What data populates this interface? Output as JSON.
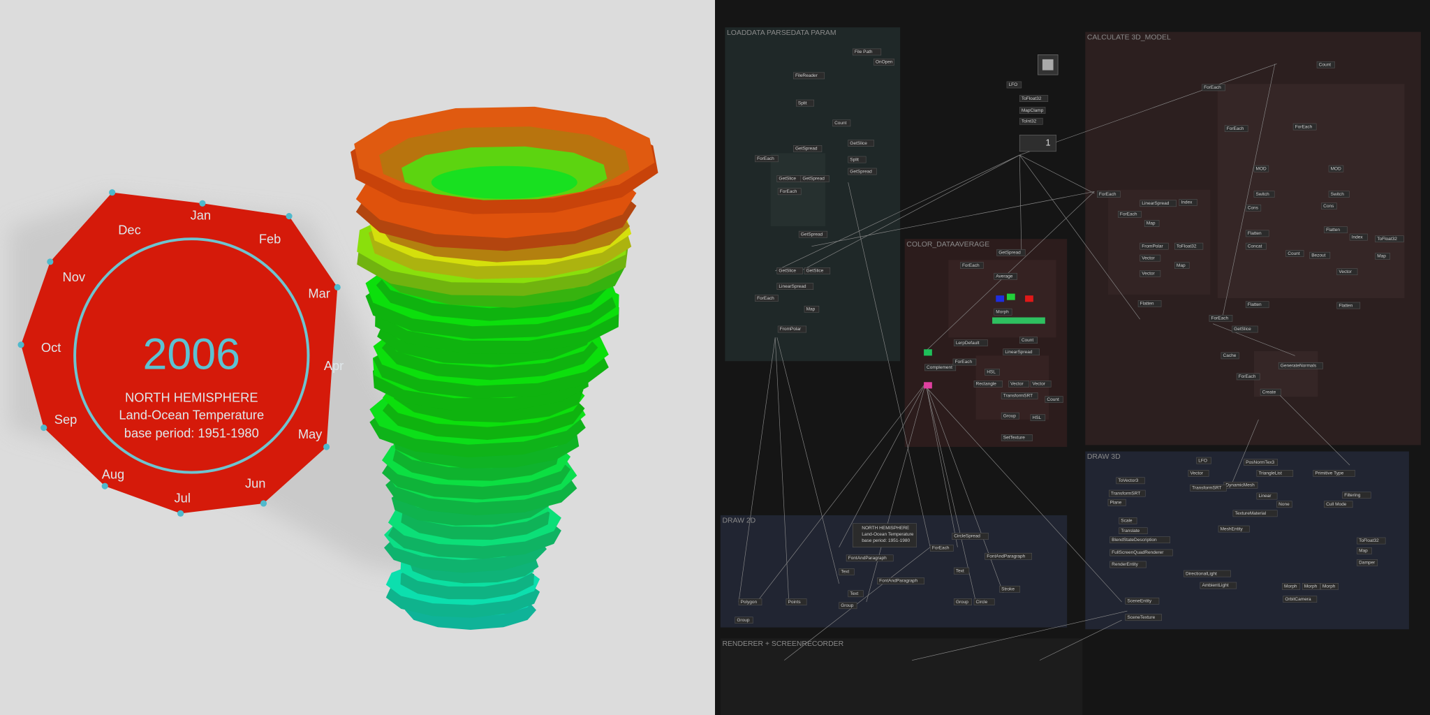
{
  "viewport": {
    "year": "2006",
    "lines": [
      "NORTH HEMISPHERE",
      "Land-Ocean Temperature",
      "base period: 1951-1980"
    ],
    "months": [
      "Jan",
      "Feb",
      "Mar",
      "Apr",
      "May",
      "Jun",
      "Jul",
      "Aug",
      "Sep",
      "Oct",
      "Nov",
      "Dec"
    ]
  },
  "patch": {
    "groups": [
      {
        "title": "LOADDATA PARSEDATA PARAM"
      },
      {
        "title": "CALCULATE 3D_MODEL"
      },
      {
        "title": "COLOR_DATAAVERAGE"
      },
      {
        "title": "DRAW 3D"
      },
      {
        "title": "DRAW 2D"
      },
      {
        "title": "RENDERER + SCREENRECORDER"
      }
    ],
    "display": "1",
    "text_node": [
      "NORTH HEMISPHERE",
      "Land-Ocean Temperature",
      "base period: 1951-1980"
    ],
    "nodes": [
      {
        "label": "FileReader"
      },
      {
        "label": "Split"
      },
      {
        "label": "Count"
      },
      {
        "label": "GetSpread"
      },
      {
        "label": "GetSlice"
      },
      {
        "label": "Split"
      },
      {
        "label": "GetSpread"
      },
      {
        "label": "ForEach"
      },
      {
        "label": "GetSlice"
      },
      {
        "label": "GetSpread"
      },
      {
        "label": "ForEach"
      },
      {
        "label": "GetSpread"
      },
      {
        "label": "GetSlice"
      },
      {
        "label": "GetSlice"
      },
      {
        "label": "LinearSpread"
      },
      {
        "label": "ForEach"
      },
      {
        "label": "Map"
      },
      {
        "label": "FromPolar"
      },
      {
        "label": "File Path"
      },
      {
        "label": "OnOpen"
      },
      {
        "label": "LFO"
      },
      {
        "label": "ToFloat32"
      },
      {
        "label": "MapClamp"
      },
      {
        "label": "ToInt32"
      },
      {
        "label": "GetSpread"
      },
      {
        "label": "ForEach"
      },
      {
        "label": "Average"
      },
      {
        "label": "Morph"
      },
      {
        "label": "LerpDefault"
      },
      {
        "label": "Count"
      },
      {
        "label": "LinearSpread"
      },
      {
        "label": "Complement"
      },
      {
        "label": "ForEach"
      },
      {
        "label": "HSL"
      },
      {
        "label": "Rectangle"
      },
      {
        "label": "Vector"
      },
      {
        "label": "Vector"
      },
      {
        "label": "TransformSRT"
      },
      {
        "label": "Count"
      },
      {
        "label": "Group"
      },
      {
        "label": "HSL"
      },
      {
        "label": "SetTexture"
      },
      {
        "label": "Count"
      },
      {
        "label": "ForEach"
      },
      {
        "label": "ForEach"
      },
      {
        "label": "ForEach"
      },
      {
        "label": "MOD"
      },
      {
        "label": "MOD"
      },
      {
        "label": "Switch"
      },
      {
        "label": "Switch"
      },
      {
        "label": "Cons"
      },
      {
        "label": "Cons"
      },
      {
        "label": "ForEach"
      },
      {
        "label": "LinearSpread"
      },
      {
        "label": "Index"
      },
      {
        "label": "ForEach"
      },
      {
        "label": "Map"
      },
      {
        "label": "FromPolar"
      },
      {
        "label": "ToFloat32"
      },
      {
        "label": "Vector"
      },
      {
        "label": "Map"
      },
      {
        "label": "Vector"
      },
      {
        "label": "Flatten"
      },
      {
        "label": "Flatten"
      },
      {
        "label": "Index"
      },
      {
        "label": "ToFloat32"
      },
      {
        "label": "Concat"
      },
      {
        "label": "Count"
      },
      {
        "label": "Bezout"
      },
      {
        "label": "Map"
      },
      {
        "label": "Vector"
      },
      {
        "label": "Flatten"
      },
      {
        "label": "Flatten"
      },
      {
        "label": "Flatten"
      },
      {
        "label": "ForEach"
      },
      {
        "label": "GetSlice"
      },
      {
        "label": "Cache"
      },
      {
        "label": "ForEach"
      },
      {
        "label": "GenerateNormals"
      },
      {
        "label": "Create"
      },
      {
        "label": "PosNormTex3"
      },
      {
        "label": "TriangleList"
      },
      {
        "label": "Primitive Type"
      },
      {
        "label": "LFO"
      },
      {
        "label": "Vector"
      },
      {
        "label": "DynamicMesh"
      },
      {
        "label": "ToVector3"
      },
      {
        "label": "TransformSRT"
      },
      {
        "label": "TransformSRT"
      },
      {
        "label": "Plane"
      },
      {
        "label": "Linear"
      },
      {
        "label": "Filtering"
      },
      {
        "label": "None"
      },
      {
        "label": "Cull Mode"
      },
      {
        "label": "TextureMaterial"
      },
      {
        "label": "Scale"
      },
      {
        "label": "Translate"
      },
      {
        "label": "MeshEntity"
      },
      {
        "label": "BlendStateDescription"
      },
      {
        "label": "FullScreenQuadRenderer"
      },
      {
        "label": "RenderEntity"
      },
      {
        "label": "DirectionalLight"
      },
      {
        "label": "AmbientLight"
      },
      {
        "label": "Morph"
      },
      {
        "label": "Morph"
      },
      {
        "label": "Morph"
      },
      {
        "label": "ToFloat32"
      },
      {
        "label": "Map"
      },
      {
        "label": "Damper"
      },
      {
        "label": "OrbitCamera"
      },
      {
        "label": "SceneEntity"
      },
      {
        "label": "SceneTexture"
      },
      {
        "label": "ForEach"
      },
      {
        "label": "CircleSpread"
      },
      {
        "label": "FontAndParagraph"
      },
      {
        "label": "FontAndParagraph"
      },
      {
        "label": "FontAndParagraph"
      },
      {
        "label": "Text"
      },
      {
        "label": "Text"
      },
      {
        "label": "Text"
      },
      {
        "label": "Group"
      },
      {
        "label": "Group"
      },
      {
        "label": "Circle"
      },
      {
        "label": "Stroke"
      },
      {
        "label": "Polygon"
      },
      {
        "label": "Points"
      },
      {
        "label": "Group"
      }
    ]
  }
}
